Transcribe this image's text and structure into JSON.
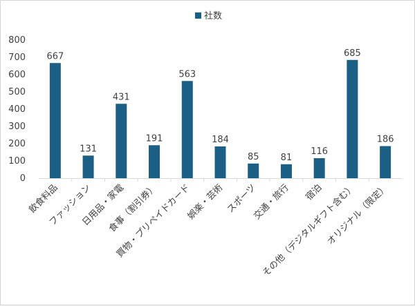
{
  "chart_data": {
    "type": "bar",
    "categories": [
      "飲食料品",
      "ファッション",
      "日用品・家電",
      "食事（割引券）",
      "買物・プリペイドカード",
      "娯楽・芸術",
      "スポーツ",
      "交通・旅行",
      "宿泊",
      "その他（デジタルギフト含む）",
      "オリジナル（限定）"
    ],
    "series": [
      {
        "name": "社数",
        "values": [
          667,
          131,
          431,
          191,
          563,
          184,
          85,
          81,
          116,
          685,
          186
        ]
      }
    ],
    "ylim": [
      0,
      800
    ],
    "yticks": [
      "0",
      "100",
      "200",
      "300",
      "400",
      "500",
      "600",
      "700",
      "800"
    ],
    "grid": false,
    "legend": "top",
    "data_labels": true,
    "bar_color": "#1b5f85"
  }
}
